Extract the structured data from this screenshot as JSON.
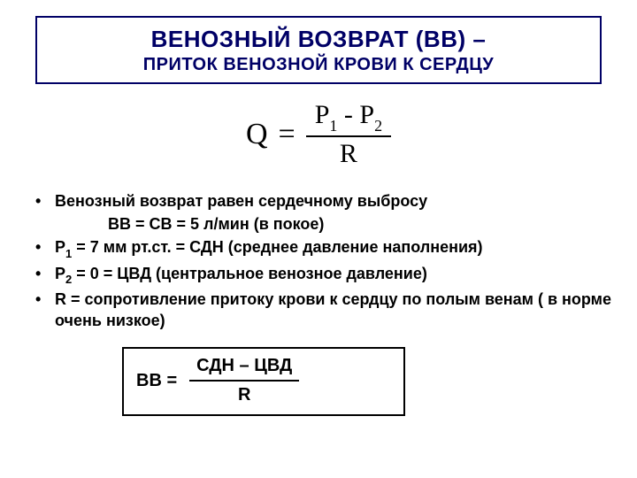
{
  "title": {
    "main": "ВЕНОЗНЫЙ ВОЗВРАТ (ВВ) –",
    "sub": "ПРИТОК ВЕНОЗНОЙ КРОВИ К СЕРДЦУ"
  },
  "formula": {
    "left": "Q",
    "eq": "=",
    "num_p1": "P",
    "num_s1": "1",
    "num_minus": " - ",
    "num_p2": "P",
    "num_s2": "2",
    "den": "R"
  },
  "bullets": {
    "b1": "Венозный возврат равен сердечному выбросу",
    "b1a": "ВВ = СВ = 5 л/мин (в покое)",
    "b2_pre": "Р",
    "b2_sub": "1",
    "b2_post": " = 7 мм рт.ст. = СДН (среднее давление наполнения)",
    "b3_pre": "Р",
    "b3_sub": "2",
    "b3_post": " = 0 = ЦВД (центральное венозное давление)",
    "b4": "R = сопротивление притоку крови к сердцу по полым венам ( в норме очень низкое)"
  },
  "vvbox": {
    "left": "ВВ =",
    "num": "СДН – ЦВД",
    "den": "R"
  },
  "colors": {
    "title_border": "#000066",
    "title_text": "#000066",
    "background": "#ffffff",
    "body_text": "#000000"
  }
}
